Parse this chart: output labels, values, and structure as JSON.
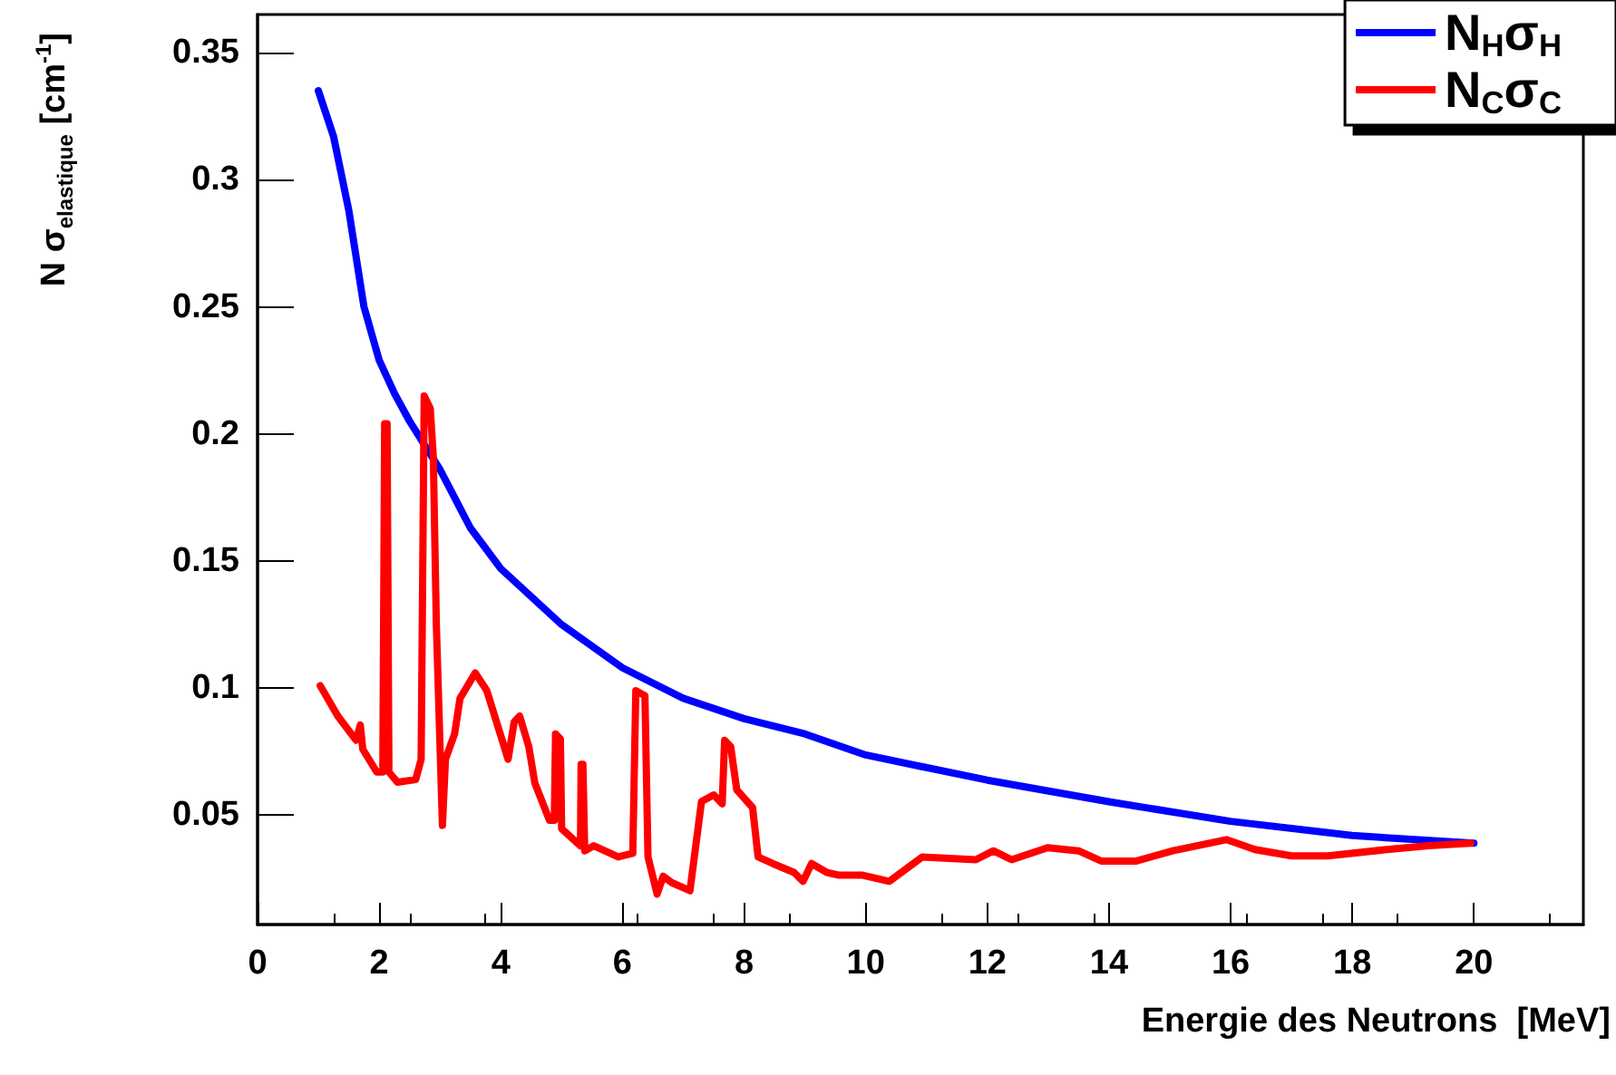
{
  "chart_data": {
    "type": "line",
    "xlabel": "Energie des Neutrons  [MeV]",
    "ylabel": "N σ$_{elastique}$ [cm$^{-1}$]",
    "xlim": [
      0,
      21.8
    ],
    "xticks": [
      0,
      2,
      4,
      6,
      8,
      10,
      12,
      14,
      16,
      18,
      20
    ],
    "ylim": [
      0.007,
      0.365
    ],
    "yticks": [
      0.05,
      0.1,
      0.15,
      0.2,
      0.25,
      0.3,
      0.35
    ],
    "grid": false,
    "legend": "top right",
    "marker": "none",
    "line_style": "solid",
    "series": [
      {
        "name": "N$_{H}$σ$_{H}$",
        "color": "#0000ff",
        "x": [
          1,
          1.25,
          1.5,
          1.75,
          2,
          2.25,
          2.5,
          3,
          3.5,
          4,
          5,
          6,
          7,
          8,
          9,
          10,
          12,
          14,
          16,
          18,
          20
        ],
        "values": [
          0.335,
          0.317,
          0.288,
          0.25,
          0.229,
          0.216,
          0.205,
          0.186,
          0.163,
          0.147,
          0.125,
          0.108,
          0.096,
          0.088,
          0.082,
          0.0737,
          0.0638,
          0.0553,
          0.0476,
          0.042,
          0.039
        ]
      },
      {
        "name": "N$_{C}$σ$_{C}$",
        "color": "#ff0000",
        "x": [
          1.03,
          1.32,
          1.62,
          1.69,
          1.73,
          1.96,
          2.06,
          2.09,
          2.13,
          2.16,
          2.3,
          2.6,
          2.69,
          2.74,
          2.84,
          2.89,
          2.94,
          3.04,
          3.09,
          3.24,
          3.33,
          3.58,
          3.77,
          4.12,
          4.22,
          4.31,
          4.46,
          4.56,
          4.8,
          4.88,
          4.9,
          4.98,
          5.0,
          5.29,
          5.31,
          5.32,
          5.35,
          5.38,
          5.53,
          5.93,
          6.17,
          6.22,
          6.37,
          6.42,
          6.57,
          6.67,
          6.81,
          7.11,
          7.3,
          7.5,
          7.64,
          7.68,
          7.78,
          7.88,
          8.14,
          8.23,
          8.47,
          8.82,
          8.97,
          9.11,
          9.36,
          9.56,
          9.95,
          10.39,
          10.93,
          11.81,
          12.1,
          12.4,
          12.99,
          13.5,
          13.87,
          14.45,
          15.05,
          15.93,
          16.4,
          17.0,
          17.6,
          18.57,
          19.26,
          19.95
        ],
        "values": [
          0.101,
          0.089,
          0.0795,
          0.0855,
          0.076,
          0.067,
          0.067,
          0.204,
          0.204,
          0.067,
          0.063,
          0.064,
          0.072,
          0.215,
          0.21,
          0.191,
          0.125,
          0.046,
          0.072,
          0.082,
          0.096,
          0.106,
          0.099,
          0.072,
          0.0867,
          0.089,
          0.077,
          0.0626,
          0.048,
          0.048,
          0.082,
          0.08,
          0.0447,
          0.0384,
          0.038,
          0.07,
          0.07,
          0.036,
          0.038,
          0.0336,
          0.035,
          0.099,
          0.097,
          0.0336,
          0.019,
          0.026,
          0.0235,
          0.0203,
          0.0554,
          0.058,
          0.0545,
          0.0795,
          0.077,
          0.06,
          0.053,
          0.0336,
          0.031,
          0.0275,
          0.024,
          0.031,
          0.0275,
          0.0264,
          0.0264,
          0.024,
          0.0336,
          0.0325,
          0.036,
          0.0325,
          0.0372,
          0.036,
          0.032,
          0.032,
          0.036,
          0.0404,
          0.0365,
          0.034,
          0.034,
          0.0365,
          0.038,
          0.039
        ]
      }
    ]
  }
}
